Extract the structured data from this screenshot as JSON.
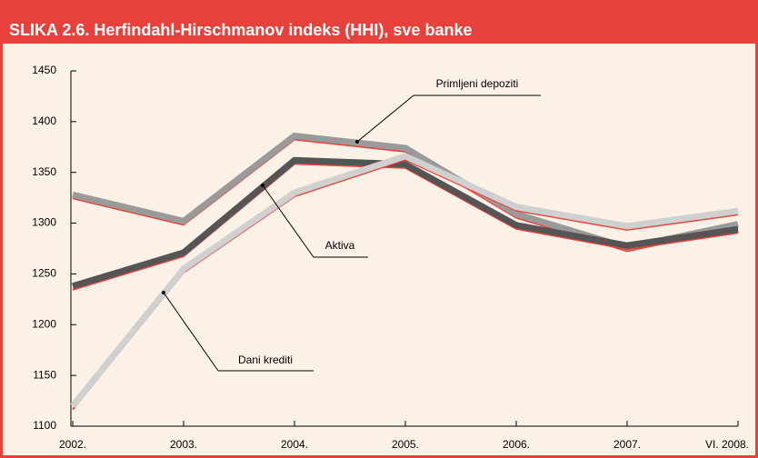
{
  "chart_data": {
    "type": "line",
    "title": "SLIKA 2.6. Herfindahl-Hirschmanov indeks (HHI), sve banke",
    "categories": [
      "2002.",
      "2003.",
      "2004.",
      "2005.",
      "2006.",
      "2007.",
      "VI. 2008."
    ],
    "series": [
      {
        "name": "Primljeni depoziti",
        "color": "#9a9a9a",
        "values": [
          1328,
          1302,
          1386,
          1374,
          1309,
          1276,
          1299
        ]
      },
      {
        "name": "Aktiva",
        "color": "#555555",
        "values": [
          1238,
          1271,
          1362,
          1358,
          1298,
          1278,
          1294
        ]
      },
      {
        "name": "Dani krediti",
        "color": "#d0d0d0",
        "values": [
          1120,
          1255,
          1330,
          1366,
          1316,
          1297,
          1312
        ]
      }
    ],
    "shadow_color": "#e8403a",
    "ylim": [
      1100,
      1450
    ],
    "yticks": [
      1100,
      1150,
      1200,
      1250,
      1300,
      1350,
      1400,
      1450
    ]
  }
}
